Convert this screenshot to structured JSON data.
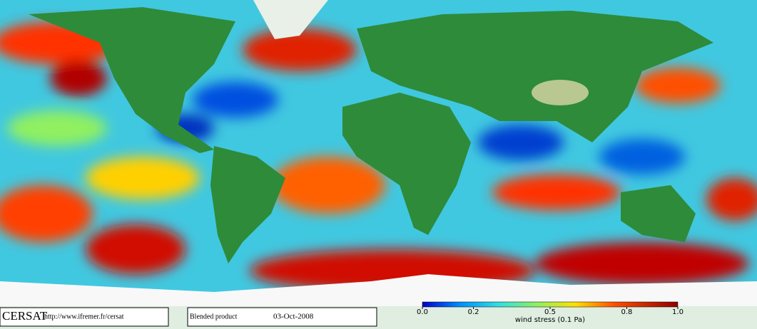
{
  "footer": {
    "logo": "CERSAT",
    "url": "http://www.ifremer.fr/cersat",
    "product": "Blended product",
    "date": "03-Oct-2008"
  },
  "colorbar": {
    "label": "wind stress (0.1 Pa)",
    "lim": [
      0,
      1
    ],
    "ticks": [
      {
        "value": 0,
        "label": "0.0"
      },
      {
        "value": 0.2,
        "label": "0.2"
      },
      {
        "value": 0.5,
        "label": "0.5"
      },
      {
        "value": 0.8,
        "label": "0.8"
      },
      {
        "value": 1,
        "label": "1.0"
      }
    ]
  }
}
